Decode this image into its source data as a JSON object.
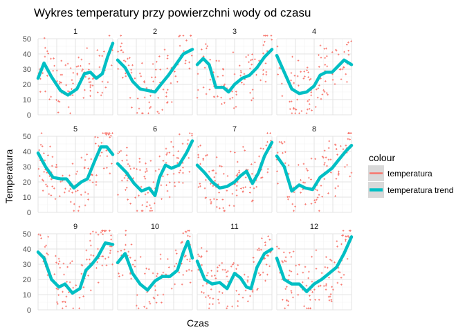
{
  "chart_data": {
    "type": "scatter",
    "title": "Wykres temperatury przy powierzchni wody od czasu",
    "xlabel": "Czas",
    "ylabel": "Temperatura",
    "ylim": [
      0,
      50
    ],
    "yticks": [
      0,
      10,
      20,
      30,
      40,
      50
    ],
    "x_tick_labels_shown": false,
    "grid": true,
    "facet_layout": "3 rows x 4 columns",
    "legend": {
      "title": "colour",
      "position": "right",
      "entries": [
        {
          "label": "temperatura",
          "color": "#F8766D",
          "geom": "points"
        },
        {
          "label": "temperatura trend",
          "color": "#00BFC4",
          "geom": "smooth line"
        }
      ]
    },
    "colors": {
      "temperatura": "#F8766D",
      "temperatura_trend": "#00BFC4"
    },
    "panels": [
      {
        "label": "1",
        "trend": [
          [
            0,
            24
          ],
          [
            0.08,
            34
          ],
          [
            0.18,
            25
          ],
          [
            0.3,
            16
          ],
          [
            0.4,
            13
          ],
          [
            0.52,
            17
          ],
          [
            0.62,
            27
          ],
          [
            0.7,
            28
          ],
          [
            0.78,
            24
          ],
          [
            0.86,
            27
          ],
          [
            0.93,
            38
          ],
          [
            1,
            47
          ]
        ]
      },
      {
        "label": "2",
        "trend": [
          [
            0,
            36
          ],
          [
            0.1,
            31
          ],
          [
            0.2,
            22
          ],
          [
            0.3,
            17
          ],
          [
            0.4,
            16
          ],
          [
            0.5,
            15
          ],
          [
            0.58,
            20
          ],
          [
            0.68,
            26
          ],
          [
            0.78,
            33
          ],
          [
            0.88,
            40
          ],
          [
            1,
            43
          ]
        ]
      },
      {
        "label": "3",
        "trend": [
          [
            0,
            33
          ],
          [
            0.08,
            37
          ],
          [
            0.16,
            33
          ],
          [
            0.25,
            18
          ],
          [
            0.35,
            18
          ],
          [
            0.42,
            15
          ],
          [
            0.5,
            20
          ],
          [
            0.6,
            24
          ],
          [
            0.7,
            26
          ],
          [
            0.8,
            31
          ],
          [
            0.9,
            38
          ],
          [
            1,
            43
          ]
        ]
      },
      {
        "label": "4",
        "trend": [
          [
            0,
            39
          ],
          [
            0.1,
            28
          ],
          [
            0.2,
            17
          ],
          [
            0.3,
            14
          ],
          [
            0.4,
            15
          ],
          [
            0.5,
            19
          ],
          [
            0.58,
            26
          ],
          [
            0.66,
            28
          ],
          [
            0.74,
            28
          ],
          [
            0.82,
            32
          ],
          [
            0.9,
            36
          ],
          [
            1,
            33
          ]
        ]
      },
      {
        "label": "5",
        "trend": [
          [
            0,
            39
          ],
          [
            0.1,
            30
          ],
          [
            0.2,
            23
          ],
          [
            0.3,
            22
          ],
          [
            0.38,
            22
          ],
          [
            0.48,
            16
          ],
          [
            0.58,
            20
          ],
          [
            0.66,
            22
          ],
          [
            0.76,
            34
          ],
          [
            0.84,
            43
          ],
          [
            0.92,
            43
          ],
          [
            1,
            38
          ]
        ]
      },
      {
        "label": "6",
        "trend": [
          [
            0,
            32
          ],
          [
            0.12,
            26
          ],
          [
            0.22,
            19
          ],
          [
            0.32,
            14
          ],
          [
            0.42,
            16
          ],
          [
            0.5,
            11
          ],
          [
            0.56,
            23
          ],
          [
            0.64,
            31
          ],
          [
            0.72,
            29
          ],
          [
            0.82,
            31
          ],
          [
            0.92,
            39
          ],
          [
            1,
            47
          ]
        ]
      },
      {
        "label": "7",
        "trend": [
          [
            0,
            31
          ],
          [
            0.1,
            26
          ],
          [
            0.2,
            20
          ],
          [
            0.3,
            16
          ],
          [
            0.4,
            17
          ],
          [
            0.5,
            20
          ],
          [
            0.58,
            24
          ],
          [
            0.66,
            27
          ],
          [
            0.74,
            19
          ],
          [
            0.82,
            26
          ],
          [
            0.9,
            37
          ],
          [
            1,
            46
          ]
        ]
      },
      {
        "label": "8",
        "trend": [
          [
            0,
            37
          ],
          [
            0.1,
            30
          ],
          [
            0.2,
            14
          ],
          [
            0.3,
            18
          ],
          [
            0.38,
            16
          ],
          [
            0.48,
            15
          ],
          [
            0.58,
            23
          ],
          [
            0.66,
            26
          ],
          [
            0.74,
            29
          ],
          [
            0.82,
            34
          ],
          [
            0.92,
            40
          ],
          [
            1,
            44
          ]
        ]
      },
      {
        "label": "9",
        "trend": [
          [
            0,
            38
          ],
          [
            0.08,
            34
          ],
          [
            0.18,
            20
          ],
          [
            0.28,
            15
          ],
          [
            0.36,
            17
          ],
          [
            0.46,
            11
          ],
          [
            0.56,
            14
          ],
          [
            0.64,
            26
          ],
          [
            0.72,
            30
          ],
          [
            0.8,
            35
          ],
          [
            0.9,
            44
          ],
          [
            1,
            43
          ]
        ]
      },
      {
        "label": "10",
        "trend": [
          [
            0,
            31
          ],
          [
            0.1,
            37
          ],
          [
            0.2,
            24
          ],
          [
            0.3,
            17
          ],
          [
            0.4,
            13
          ],
          [
            0.5,
            19
          ],
          [
            0.6,
            22
          ],
          [
            0.7,
            22
          ],
          [
            0.8,
            26
          ],
          [
            0.88,
            38
          ],
          [
            0.94,
            45
          ],
          [
            1,
            34
          ]
        ]
      },
      {
        "label": "11",
        "trend": [
          [
            0,
            32
          ],
          [
            0.1,
            20
          ],
          [
            0.2,
            17
          ],
          [
            0.3,
            18
          ],
          [
            0.4,
            14
          ],
          [
            0.5,
            24
          ],
          [
            0.58,
            21
          ],
          [
            0.66,
            15
          ],
          [
            0.72,
            14
          ],
          [
            0.8,
            28
          ],
          [
            0.9,
            37
          ],
          [
            1,
            40
          ]
        ]
      },
      {
        "label": "12",
        "trend": [
          [
            0,
            34
          ],
          [
            0.1,
            20
          ],
          [
            0.2,
            17
          ],
          [
            0.3,
            17
          ],
          [
            0.4,
            12
          ],
          [
            0.5,
            17
          ],
          [
            0.6,
            20
          ],
          [
            0.7,
            24
          ],
          [
            0.8,
            28
          ],
          [
            0.9,
            37
          ],
          [
            1,
            48
          ]
        ]
      }
    ]
  }
}
